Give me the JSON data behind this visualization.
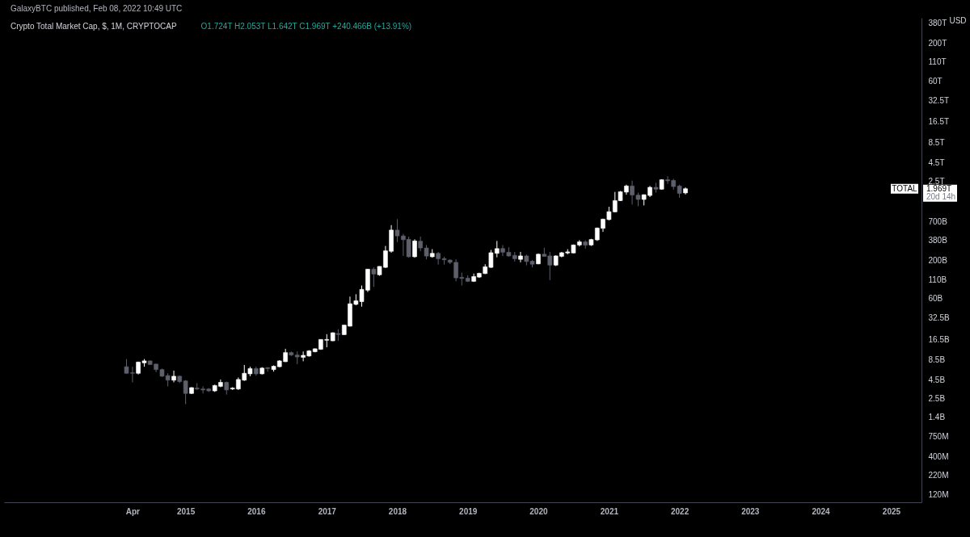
{
  "chart_data": {
    "type": "candlestick",
    "title": "Crypto Total Market Cap, $, 1M, CRYPTOCAP",
    "subtitle": "O1.724T H2.053T L1.642T C1.969T +240.466B (+13.91%)",
    "x": [
      "2014-03",
      "2014-04",
      "2014-05",
      "2014-06",
      "2014-07",
      "2014-08",
      "2014-09",
      "2014-10",
      "2014-11",
      "2014-12",
      "2015-01",
      "2015-02",
      "2015-03",
      "2015-04",
      "2015-05",
      "2015-06",
      "2015-07",
      "2015-08",
      "2015-09",
      "2015-10",
      "2015-11",
      "2015-12",
      "2016-01",
      "2016-02",
      "2016-03",
      "2016-04",
      "2016-05",
      "2016-06",
      "2016-07",
      "2016-08",
      "2016-09",
      "2016-10",
      "2016-11",
      "2016-12",
      "2017-01",
      "2017-02",
      "2017-03",
      "2017-04",
      "2017-05",
      "2017-06",
      "2017-07",
      "2017-08",
      "2017-09",
      "2017-10",
      "2017-11",
      "2017-12",
      "2018-01",
      "2018-02",
      "2018-03",
      "2018-04",
      "2018-05",
      "2018-06",
      "2018-07",
      "2018-08",
      "2018-09",
      "2018-10",
      "2018-11",
      "2018-12",
      "2019-01",
      "2019-02",
      "2019-03",
      "2019-04",
      "2019-05",
      "2019-06",
      "2019-07",
      "2019-08",
      "2019-09",
      "2019-10",
      "2019-11",
      "2019-12",
      "2020-01",
      "2020-02",
      "2020-03",
      "2020-04",
      "2020-05",
      "2020-06",
      "2020-07",
      "2020-08",
      "2020-09",
      "2020-10",
      "2020-11",
      "2020-12",
      "2021-01",
      "2021-02",
      "2021-03",
      "2021-04",
      "2021-05",
      "2021-06",
      "2021-07",
      "2021-08",
      "2021-09",
      "2021-10",
      "2021-11",
      "2021-12",
      "2022-01",
      "2022-02"
    ],
    "ohlc": [
      [
        6900000000.0,
        8800000000.0,
        5500000000.0,
        5600000000.0
      ],
      [
        5700000000.0,
        6900000000.0,
        4200000000.0,
        5600000000.0
      ],
      [
        5600000000.0,
        8100000000.0,
        5400000000.0,
        8000000000.0
      ],
      [
        7800000000.0,
        8800000000.0,
        6900000000.0,
        8300000000.0
      ],
      [
        8300000000.0,
        8400000000.0,
        7300000000.0,
        7400000000.0
      ],
      [
        7500000000.0,
        7600000000.0,
        5800000000.0,
        6300000000.0
      ],
      [
        6300000000.0,
        6500000000.0,
        5000000000.0,
        5100000000.0
      ],
      [
        5200000000.0,
        5600000000.0,
        3700000000.0,
        4500000000.0
      ],
      [
        4500000000.0,
        6100000000.0,
        4200000000.0,
        5100000000.0
      ],
      [
        5100000000.0,
        5200000000.0,
        4100000000.0,
        4300000000.0
      ],
      [
        4400000000.0,
        4500000000.0,
        2100000000.0,
        2950000000.0
      ],
      [
        2950000000.0,
        3600000000.0,
        2900000000.0,
        3550000000.0
      ],
      [
        3500000000.0,
        4100000000.0,
        3300000000.0,
        3400000000.0
      ],
      [
        3400000000.0,
        3700000000.0,
        2950000000.0,
        3300000000.0
      ],
      [
        3400000000.0,
        3500000000.0,
        3100000000.0,
        3200000000.0
      ],
      [
        3200000000.0,
        3900000000.0,
        3100000000.0,
        3800000000.0
      ],
      [
        3700000000.0,
        4600000000.0,
        3600000000.0,
        4200000000.0
      ],
      [
        4200000000.0,
        4300000000.0,
        2850000000.0,
        3300000000.0
      ],
      [
        3400000000.0,
        3600000000.0,
        3300000000.0,
        3500000000.0
      ],
      [
        3400000000.0,
        4900000000.0,
        3300000000.0,
        4600000000.0
      ],
      [
        4500000000.0,
        7300000000.0,
        4400000000.0,
        5600000000.0
      ],
      [
        5500000000.0,
        6900000000.0,
        5100000000.0,
        6500000000.0
      ],
      [
        6500000000.0,
        6900000000.0,
        5200000000.0,
        5500000000.0
      ],
      [
        5500000000.0,
        6800000000.0,
        5400000000.0,
        6600000000.0
      ],
      [
        6700000000.0,
        6800000000.0,
        5900000000.0,
        6500000000.0
      ],
      [
        6300000000.0,
        7200000000.0,
        5900000000.0,
        7000000000.0
      ],
      [
        6900000000.0,
        8500000000.0,
        6800000000.0,
        8300000000.0
      ],
      [
        8100000000.0,
        12200000000.0,
        8000000000.0,
        10800000000.0
      ],
      [
        10800000000.0,
        11200000000.0,
        9700000000.0,
        10000000000.0
      ],
      [
        10000000000.0,
        11200000000.0,
        7500000000.0,
        9400000000.0
      ],
      [
        9300000000.0,
        11200000000.0,
        8200000000.0,
        9900000000.0
      ],
      [
        9700000000.0,
        11700000000.0,
        9500000000.0,
        11400000000.0
      ],
      [
        11100000000.0,
        12300000000.0,
        10900000000.0,
        12200000000.0
      ],
      [
        12000000000.0,
        16500000000.0,
        11800000000.0,
        16400000000.0
      ],
      [
        16000000000.0,
        19400000000.0,
        12800000000.0,
        16400000000.0
      ],
      [
        15700000000.0,
        20500000000.0,
        15600000000.0,
        20300000000.0
      ],
      [
        19800000000.0,
        22700000000.0,
        15700000000.0,
        19200000000.0
      ],
      [
        19100000000.0,
        26000000000.0,
        19000000000.0,
        25900000000.0
      ],
      [
        25000000000.0,
        64000000000.0,
        24800000000.0,
        51000000000.0
      ],
      [
        50000000000.0,
        69000000000.0,
        48500000000.0,
        56000000000.0
      ],
      [
        54500000000.0,
        91000000000.0,
        46500000000.0,
        80500000000.0
      ],
      [
        78500000000.0,
        154000000000.0,
        74000000000.0,
        153000000000.0
      ],
      [
        153000000000.0,
        162000000000.0,
        87000000000.0,
        131000000000.0
      ],
      [
        128000000000.0,
        168000000000.0,
        124000000000.0,
        167000000000.0
      ],
      [
        162000000000.0,
        320000000000.0,
        159000000000.0,
        274000000000.0
      ],
      [
        270000000000.0,
        620000000000.0,
        258000000000.0,
        530000000000.0
      ],
      [
        530000000000.0,
        750000000000.0,
        362000000000.0,
        440000000000.0
      ],
      [
        440000000000.0,
        470000000000.0,
        233000000000.0,
        390000000000.0
      ],
      [
        395000000000.0,
        430000000000.0,
        221000000000.0,
        227000000000.0
      ],
      [
        227000000000.0,
        395000000000.0,
        221000000000.0,
        375000000000.0
      ],
      [
        372000000000.0,
        430000000000.0,
        270000000000.0,
        300000000000.0
      ],
      [
        300000000000.0,
        330000000000.0,
        209000000000.0,
        232000000000.0
      ],
      [
        227000000000.0,
        289000000000.0,
        221000000000.0,
        253000000000.0
      ],
      [
        253000000000.0,
        265000000000.0,
        177000000000.0,
        213000000000.0
      ],
      [
        214000000000.0,
        227000000000.0,
        177000000000.0,
        206000000000.0
      ],
      [
        204000000000.0,
        209000000000.0,
        180000000000.0,
        190000000000.0
      ],
      [
        190000000000.0,
        209000000000.0,
        104000000000.0,
        116000000000.0
      ],
      [
        118000000000.0,
        137000000000.0,
        91000000000.0,
        114000000000.0
      ],
      [
        115000000000.0,
        126000000000.0,
        102000000000.0,
        104000000000.0
      ],
      [
        104000000000.0,
        133000000000.0,
        102000000000.0,
        121000000000.0
      ],
      [
        119000000000.0,
        137000000000.0,
        116000000000.0,
        134000000000.0
      ],
      [
        133000000000.0,
        179000000000.0,
        131000000000.0,
        165000000000.0
      ],
      [
        162000000000.0,
        282000000000.0,
        159000000000.0,
        258000000000.0
      ],
      [
        253000000000.0,
        375000000000.0,
        223000000000.0,
        294000000000.0
      ],
      [
        295000000000.0,
        328000000000.0,
        232000000000.0,
        262000000000.0
      ],
      [
        262000000000.0,
        307000000000.0,
        227000000000.0,
        233000000000.0
      ],
      [
        237000000000.0,
        265000000000.0,
        195000000000.0,
        213000000000.0
      ],
      [
        209000000000.0,
        265000000000.0,
        190000000000.0,
        233000000000.0
      ],
      [
        233000000000.0,
        243000000000.0,
        173000000000.0,
        195000000000.0
      ],
      [
        197000000000.0,
        204000000000.0,
        162000000000.0,
        179000000000.0
      ],
      [
        181000000000.0,
        252000000000.0,
        179000000000.0,
        246000000000.0
      ],
      [
        246000000000.0,
        302000000000.0,
        227000000000.0,
        230000000000.0
      ],
      [
        233000000000.0,
        265000000000.0,
        108000000000.0,
        174000000000.0
      ],
      [
        174000000000.0,
        237000000000.0,
        169000000000.0,
        233000000000.0
      ],
      [
        230000000000.0,
        265000000000.0,
        223000000000.0,
        258000000000.0
      ],
      [
        256000000000.0,
        289000000000.0,
        245000000000.0,
        265000000000.0
      ],
      [
        256000000000.0,
        335000000000.0,
        254000000000.0,
        330000000000.0
      ],
      [
        330000000000.0,
        385000000000.0,
        315000000000.0,
        364000000000.0
      ],
      [
        364000000000.0,
        385000000000.0,
        295000000000.0,
        328000000000.0
      ],
      [
        330000000000.0,
        401000000000.0,
        320000000000.0,
        392000000000.0
      ],
      [
        388000000000.0,
        575000000000.0,
        375000000000.0,
        565000000000.0
      ],
      [
        560000000000.0,
        760000000000.0,
        500000000000.0,
        750000000000.0
      ],
      [
        740000000000.0,
        1110000000000.0,
        720000000000.0,
        950000000000.0
      ],
      [
        945000000000.0,
        1780000000000.0,
        930000000000.0,
        1350000000000.0
      ],
      [
        1350000000000.0,
        1830000000000.0,
        1330000000000.0,
        1790000000000.0
      ],
      [
        1770000000000.0,
        2240000000000.0,
        1630000000000.0,
        2150000000000.0
      ],
      [
        2150000000000.0,
        2550000000000.0,
        1190000000000.0,
        1610000000000.0
      ],
      [
        1610000000000.0,
        1740000000000.0,
        1130000000000.0,
        1400000000000.0
      ],
      [
        1400000000000.0,
        1640000000000.0,
        1160000000000.0,
        1630000000000.0
      ],
      [
        1590000000000.0,
        2150000000000.0,
        1510000000000.0,
        2060000000000.0
      ],
      [
        2060000000000.0,
        2380000000000.0,
        1740000000000.0,
        1940000000000.0
      ],
      [
        1940000000000.0,
        2660000000000.0,
        1910000000000.0,
        2620000000000.0
      ],
      [
        2620000000000.0,
        2930000000000.0,
        2300000000000.0,
        2530000000000.0
      ],
      [
        2560000000000.0,
        2700000000000.0,
        1910000000000.0,
        2110000000000.0
      ],
      [
        2150000000000.0,
        2240000000000.0,
        1480000000000.0,
        1700000000000.0
      ],
      [
        1724000000000.0,
        2053000000000.0,
        1642000000000.0,
        1969000000000.0
      ]
    ],
    "colors": [
      "#5d606b",
      "#5d606b",
      "#ffffff",
      "#ffffff",
      "#5d606b",
      "#5d606b",
      "#5d606b",
      "#5d606b",
      "#ffffff",
      "#5d606b",
      "#5d606b",
      "#ffffff",
      "#5d606b",
      "#5d606b",
      "#5d606b",
      "#ffffff",
      "#ffffff",
      "#5d606b",
      "#ffffff",
      "#ffffff",
      "#ffffff",
      "#ffffff",
      "#5d606b",
      "#ffffff",
      "#5d606b",
      "#ffffff",
      "#ffffff",
      "#ffffff",
      "#5d606b",
      "#5d606b",
      "#ffffff",
      "#ffffff",
      "#ffffff",
      "#ffffff",
      "#ffffff",
      "#ffffff",
      "#5d606b",
      "#ffffff",
      "#ffffff",
      "#ffffff",
      "#ffffff",
      "#ffffff",
      "#5d606b",
      "#ffffff",
      "#ffffff",
      "#ffffff",
      "#5d606b",
      "#5d606b",
      "#5d606b",
      "#ffffff",
      "#5d606b",
      "#5d606b",
      "#ffffff",
      "#5d606b",
      "#5d606b",
      "#5d606b",
      "#5d606b",
      "#5d606b",
      "#5d606b",
      "#ffffff",
      "#ffffff",
      "#ffffff",
      "#ffffff",
      "#ffffff",
      "#5d606b",
      "#5d606b",
      "#5d606b",
      "#ffffff",
      "#5d606b",
      "#5d606b",
      "#ffffff",
      "#5d606b",
      "#5d606b",
      "#ffffff",
      "#ffffff",
      "#ffffff",
      "#ffffff",
      "#ffffff",
      "#5d606b",
      "#ffffff",
      "#ffffff",
      "#ffffff",
      "#ffffff",
      "#ffffff",
      "#ffffff",
      "#ffffff",
      "#5d606b",
      "#5d606b",
      "#ffffff",
      "#ffffff",
      "#5d606b",
      "#ffffff",
      "#5d606b",
      "#5d606b",
      "#5d606b",
      "#ffffff"
    ],
    "xlim": [
      "2012-06-05",
      "2025-06-07"
    ],
    "xticks": [
      {
        "value": "2014-04-01",
        "label": "Apr"
      },
      {
        "value": "2015-01-01",
        "label": "2015"
      },
      {
        "value": "2016-01-01",
        "label": "2016"
      },
      {
        "value": "2017-01-01",
        "label": "2017"
      },
      {
        "value": "2018-01-01",
        "label": "2018"
      },
      {
        "value": "2019-01-01",
        "label": "2019"
      },
      {
        "value": "2020-01-01",
        "label": "2020"
      },
      {
        "value": "2021-01-01",
        "label": "2021"
      },
      {
        "value": "2022-01-01",
        "label": "2022"
      },
      {
        "value": "2023-01-01",
        "label": "2023"
      },
      {
        "value": "2024-01-01",
        "label": "2024"
      },
      {
        "value": "2025-01-01",
        "label": "2025"
      }
    ],
    "ylim": [
      93000000.0,
      450000000000000.0
    ],
    "yticks": [
      {
        "value": 120000000.0,
        "label": "120M"
      },
      {
        "value": 220000000.0,
        "label": "220M"
      },
      {
        "value": 400000000.0,
        "label": "400M"
      },
      {
        "value": 750000000.0,
        "label": "750M"
      },
      {
        "value": 1400000000.0,
        "label": "1.4B"
      },
      {
        "value": 2500000000.0,
        "label": "2.5B"
      },
      {
        "value": 4500000000.0,
        "label": "4.5B"
      },
      {
        "value": 8500000000.0,
        "label": "8.5B"
      },
      {
        "value": 16500000000.0,
        "label": "16.5B"
      },
      {
        "value": 32500000000.0,
        "label": "32.5B"
      },
      {
        "value": 60000000000.0,
        "label": "60B"
      },
      {
        "value": 110000000000.0,
        "label": "110B"
      },
      {
        "value": 200000000000.0,
        "label": "200B"
      },
      {
        "value": 380000000000.0,
        "label": "380B"
      },
      {
        "value": 700000000000.0,
        "label": "700B"
      },
      {
        "value": 2500000000000.0,
        "label": "2.5T"
      },
      {
        "value": 4500000000000.0,
        "label": "4.5T"
      },
      {
        "value": 8500000000000.0,
        "label": "8.5T"
      },
      {
        "value": 16500000000000.0,
        "label": "16.5T"
      },
      {
        "value": 32500000000000.0,
        "label": "32.5T"
      },
      {
        "value": 60000000000000.0,
        "label": "60T"
      },
      {
        "value": 110000000000000.0,
        "label": "110T"
      },
      {
        "value": 200000000000000.0,
        "label": "200T"
      },
      {
        "value": 380000000000000.0,
        "label": "380T"
      }
    ],
    "log": true,
    "grid": false,
    "annotations": [
      "GalaxyBTC published, Feb 08, 2022 10:49 UTC",
      "USD",
      "TOTAL",
      "1.969T",
      "20d 14h"
    ]
  }
}
